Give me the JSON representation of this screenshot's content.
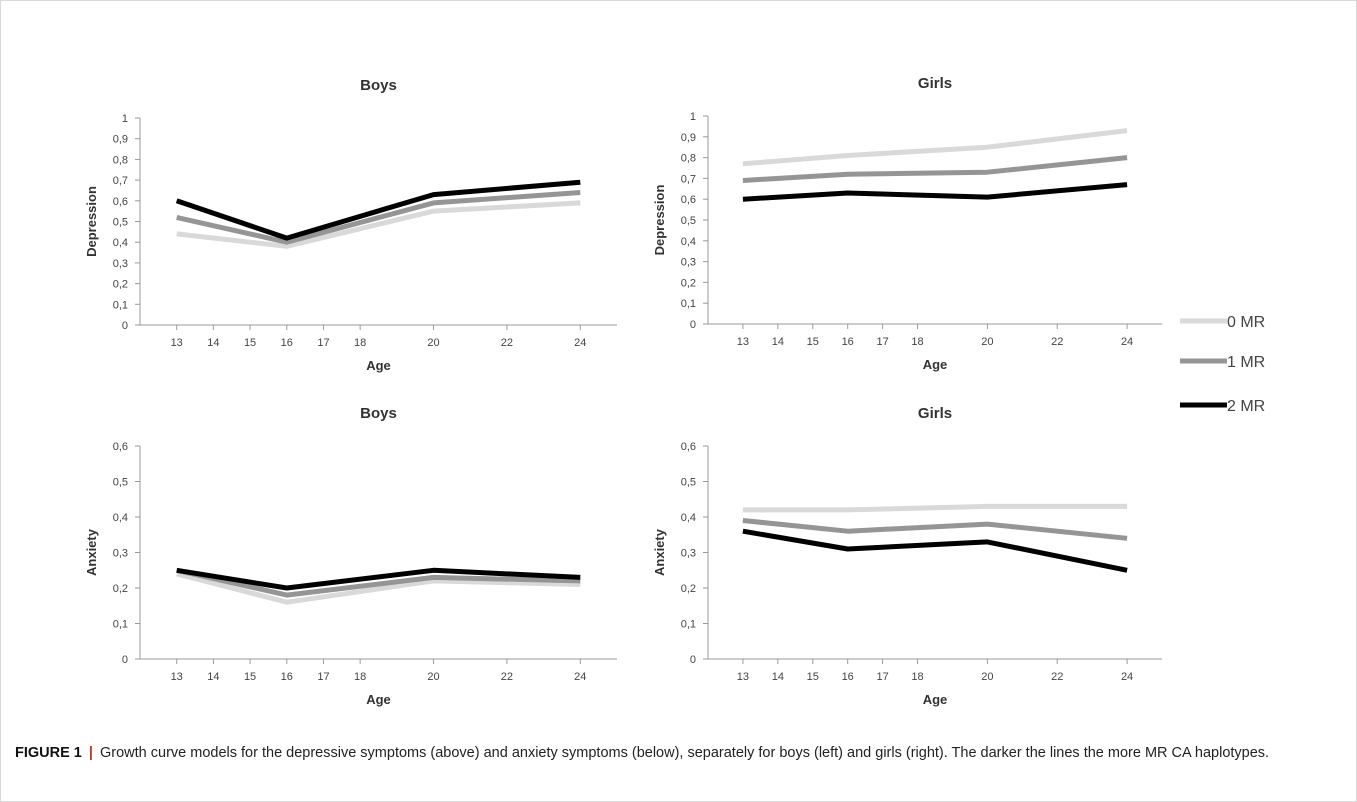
{
  "caption": {
    "label": "FIGURE 1",
    "separator": "|",
    "text": "Growth curve models for the depressive symptoms (above) and anxiety symptoms (below), separately for boys (left) and girls (right). The darker the lines the more MR CA haplotypes."
  },
  "legend": {
    "placement": "right",
    "entries": [
      {
        "label": "0 MR",
        "color": "#d9d9d9"
      },
      {
        "label": "1 MR",
        "color": "#959595"
      },
      {
        "label": "2 MR",
        "color": "#000000"
      }
    ]
  },
  "chart_data": [
    {
      "id": "boys-depression",
      "type": "line",
      "title": "Boys",
      "xlabel": "Age",
      "ylabel": "Depression",
      "xlim": [
        12,
        25
      ],
      "ylim": [
        0,
        1
      ],
      "ystep": 0.1,
      "decimals": 1,
      "xticks": [
        13,
        14,
        15,
        16,
        17,
        18,
        20,
        22,
        24
      ],
      "series": [
        {
          "name": "0 MR",
          "color": "#d9d9d9",
          "x": [
            13,
            16,
            20,
            24
          ],
          "values": [
            0.44,
            0.38,
            0.55,
            0.59
          ]
        },
        {
          "name": "1 MR",
          "color": "#959595",
          "x": [
            13,
            16,
            20,
            24
          ],
          "values": [
            0.52,
            0.4,
            0.59,
            0.64
          ]
        },
        {
          "name": "2 MR",
          "color": "#000000",
          "x": [
            13,
            16,
            20,
            24
          ],
          "values": [
            0.6,
            0.42,
            0.63,
            0.69
          ]
        }
      ]
    },
    {
      "id": "girls-depression",
      "type": "line",
      "title": "Girls",
      "xlabel": "Age",
      "ylabel": "Depression",
      "xlim": [
        12,
        25
      ],
      "ylim": [
        0,
        1
      ],
      "ystep": 0.1,
      "decimals": 1,
      "xticks": [
        13,
        14,
        15,
        16,
        17,
        18,
        20,
        22,
        24
      ],
      "series": [
        {
          "name": "0 MR",
          "color": "#d9d9d9",
          "x": [
            13,
            16,
            20,
            24
          ],
          "values": [
            0.77,
            0.81,
            0.85,
            0.93
          ]
        },
        {
          "name": "1 MR",
          "color": "#959595",
          "x": [
            13,
            16,
            20,
            24
          ],
          "values": [
            0.69,
            0.72,
            0.73,
            0.8
          ]
        },
        {
          "name": "2 MR",
          "color": "#000000",
          "x": [
            13,
            16,
            20,
            24
          ],
          "values": [
            0.6,
            0.63,
            0.61,
            0.67
          ]
        }
      ]
    },
    {
      "id": "boys-anxiety",
      "type": "line",
      "title": "Boys",
      "xlabel": "Age",
      "ylabel": "Anxiety",
      "xlim": [
        12,
        25
      ],
      "ylim": [
        0,
        0.6
      ],
      "ystep": 0.1,
      "decimals": 1,
      "xticks": [
        13,
        14,
        15,
        16,
        17,
        18,
        20,
        22,
        24
      ],
      "series": [
        {
          "name": "0 MR",
          "color": "#d9d9d9",
          "x": [
            13,
            16,
            20,
            24
          ],
          "values": [
            0.24,
            0.16,
            0.22,
            0.21
          ]
        },
        {
          "name": "1 MR",
          "color": "#959595",
          "x": [
            13,
            16,
            20,
            24
          ],
          "values": [
            0.25,
            0.18,
            0.23,
            0.22
          ]
        },
        {
          "name": "2 MR",
          "color": "#000000",
          "x": [
            13,
            16,
            20,
            24
          ],
          "values": [
            0.25,
            0.2,
            0.25,
            0.23
          ]
        }
      ]
    },
    {
      "id": "girls-anxiety",
      "type": "line",
      "title": "Girls",
      "xlabel": "Age",
      "ylabel": "Anxiety",
      "xlim": [
        12,
        25
      ],
      "ylim": [
        0,
        0.6
      ],
      "ystep": 0.1,
      "decimals": 1,
      "xticks": [
        13,
        14,
        15,
        16,
        17,
        18,
        20,
        22,
        24
      ],
      "series": [
        {
          "name": "0 MR",
          "color": "#d9d9d9",
          "x": [
            13,
            16,
            20,
            24
          ],
          "values": [
            0.42,
            0.42,
            0.43,
            0.43
          ]
        },
        {
          "name": "1 MR",
          "color": "#959595",
          "x": [
            13,
            16,
            20,
            24
          ],
          "values": [
            0.39,
            0.36,
            0.38,
            0.34
          ]
        },
        {
          "name": "2 MR",
          "color": "#000000",
          "x": [
            13,
            16,
            20,
            24
          ],
          "values": [
            0.36,
            0.31,
            0.33,
            0.25
          ]
        }
      ]
    }
  ]
}
